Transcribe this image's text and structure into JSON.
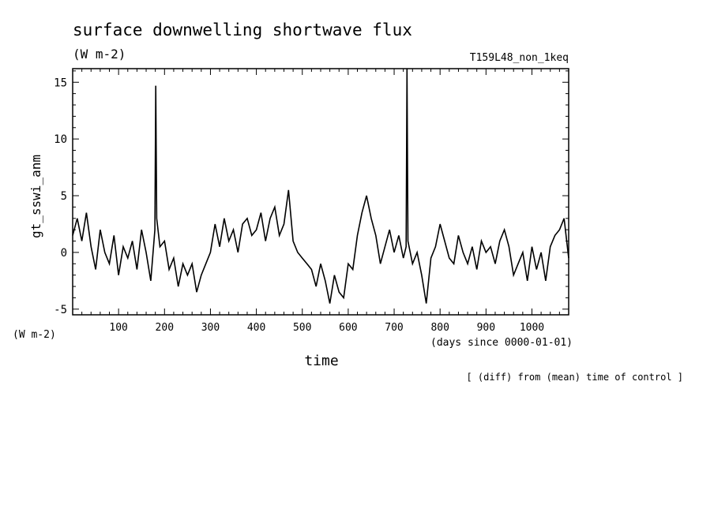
{
  "chart_data": {
    "type": "line",
    "title": "surface downwelling shortwave flux",
    "subtitle": "(W m-2)",
    "run_label": "T159L48_non_1keq",
    "ylabel": "gt_sswi_anm",
    "y_units_label": "(W m-2)",
    "xlabel": "time",
    "x_units_label": "(days since 0000-01-01)",
    "footnote": "[ (diff) from (mean) time of control ]",
    "xlim": [
      0,
      1080
    ],
    "ylim": [
      -5.5,
      16.2
    ],
    "x_ticks": [
      100,
      200,
      300,
      400,
      500,
      600,
      700,
      800,
      900,
      1000
    ],
    "y_ticks": [
      -5,
      0,
      5,
      10,
      15
    ],
    "grid": false,
    "line_color": "#000000",
    "series": [
      {
        "x": [
          0,
          10,
          20,
          30,
          40,
          50,
          60,
          70,
          80,
          90,
          100,
          110,
          120,
          130,
          140,
          150,
          160,
          170,
          179,
          181,
          183,
          190,
          200,
          210,
          220,
          230,
          240,
          250,
          260,
          270,
          280,
          290,
          300,
          310,
          320,
          330,
          340,
          350,
          360,
          370,
          380,
          390,
          400,
          410,
          420,
          430,
          440,
          450,
          460,
          470,
          480,
          490,
          500,
          510,
          520,
          530,
          540,
          550,
          560,
          570,
          580,
          590,
          600,
          610,
          620,
          630,
          640,
          650,
          660,
          670,
          680,
          690,
          700,
          710,
          720,
          726,
          728,
          730,
          740,
          750,
          760,
          770,
          780,
          790,
          800,
          810,
          820,
          830,
          840,
          850,
          860,
          870,
          880,
          890,
          900,
          910,
          920,
          930,
          940,
          950,
          960,
          970,
          980,
          990,
          1000,
          1010,
          1020,
          1030,
          1040,
          1050,
          1060,
          1070,
          1080
        ],
        "values": [
          1.5,
          3.0,
          1.0,
          3.5,
          0.5,
          -1.5,
          2.0,
          0.0,
          -1.0,
          1.5,
          -2.0,
          0.5,
          -0.5,
          1.0,
          -1.5,
          2.0,
          0.0,
          -2.5,
          2.0,
          14.7,
          3.0,
          0.5,
          1.0,
          -1.5,
          -0.5,
          -3.0,
          -1.0,
          -2.0,
          -1.0,
          -3.5,
          -2.0,
          -1.0,
          0.0,
          2.5,
          0.5,
          3.0,
          1.0,
          2.0,
          0.0,
          2.5,
          3.0,
          1.5,
          2.0,
          3.5,
          1.0,
          3.0,
          4.0,
          1.5,
          2.5,
          5.5,
          1.0,
          0.0,
          -0.5,
          -1.0,
          -1.5,
          -3.0,
          -1.0,
          -2.5,
          -4.5,
          -2.0,
          -3.5,
          -4.0,
          -1.0,
          -1.5,
          1.5,
          3.5,
          5.0,
          3.0,
          1.5,
          -1.0,
          0.5,
          2.0,
          0.0,
          1.5,
          -0.5,
          0.5,
          16.2,
          1.0,
          -1.0,
          0.0,
          -2.0,
          -4.5,
          -0.5,
          0.5,
          2.5,
          1.0,
          -0.5,
          -1.0,
          1.5,
          0.0,
          -1.0,
          0.5,
          -1.5,
          1.0,
          0.0,
          0.5,
          -1.0,
          1.0,
          2.0,
          0.5,
          -2.0,
          -1.0,
          0.0,
          -2.5,
          0.5,
          -1.5,
          0.0,
          -2.5,
          0.5,
          1.5,
          2.0,
          3.0,
          -0.5
        ]
      }
    ]
  }
}
